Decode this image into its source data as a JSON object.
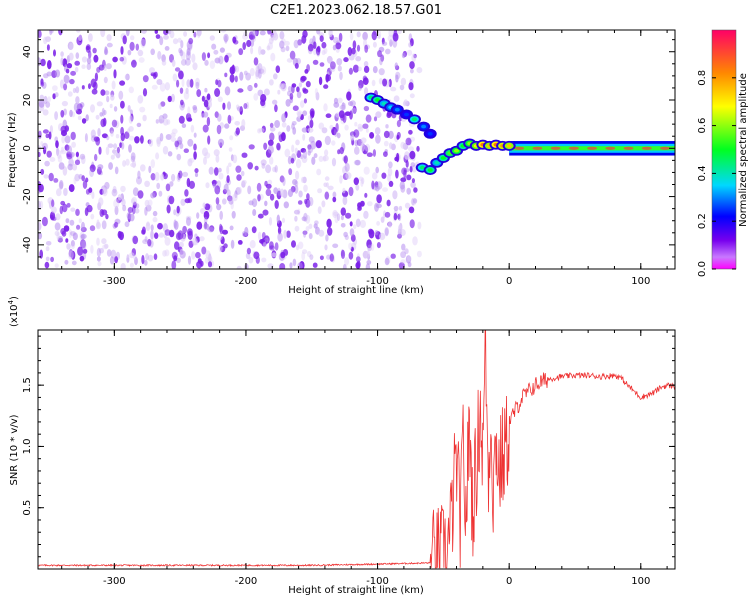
{
  "title": "C2E1.2023.062.18.57.G01",
  "chart_data": [
    {
      "type": "heatmap",
      "title": "",
      "xlabel": "Height of straight line (km)",
      "ylabel": "Frequency (Hz)",
      "xlim": [
        -358,
        126
      ],
      "ylim": [
        -50,
        49
      ],
      "x_ticks": [
        -300,
        -200,
        -100,
        0,
        100
      ],
      "y_ticks": [
        -40,
        -20,
        0,
        20,
        40
      ],
      "noise_region_x": [
        -358,
        -68
      ],
      "trace": [
        {
          "x": -105,
          "y": 21,
          "amp": 0.45
        },
        {
          "x": -100,
          "y": 20,
          "amp": 0.5
        },
        {
          "x": -95,
          "y": 18.5,
          "amp": 0.4
        },
        {
          "x": -90,
          "y": 17,
          "amp": 0.35
        },
        {
          "x": -85,
          "y": 16,
          "amp": 0.3
        },
        {
          "x": -78,
          "y": 14,
          "amp": 0.25
        },
        {
          "x": -72,
          "y": 12,
          "amp": 0.45
        },
        {
          "x": -65,
          "y": 9,
          "amp": 0.3
        },
        {
          "x": -60,
          "y": 6,
          "amp": 0.25
        },
        {
          "x": -66,
          "y": -8,
          "amp": 0.45
        },
        {
          "x": -60,
          "y": -9,
          "amp": 0.5
        },
        {
          "x": -55,
          "y": -6,
          "amp": 0.4
        },
        {
          "x": -50,
          "y": -4,
          "amp": 0.5
        },
        {
          "x": -45,
          "y": -2,
          "amp": 0.55
        },
        {
          "x": -40,
          "y": -1,
          "amp": 0.6
        },
        {
          "x": -35,
          "y": 1,
          "amp": 0.5
        },
        {
          "x": -30,
          "y": 2,
          "amp": 0.6
        },
        {
          "x": -25,
          "y": 1,
          "amp": 0.7
        },
        {
          "x": -20,
          "y": 1.5,
          "amp": 0.85
        },
        {
          "x": -15,
          "y": 1,
          "amp": 0.75
        },
        {
          "x": -10,
          "y": 1.5,
          "amp": 0.85
        },
        {
          "x": -5,
          "y": 1,
          "amp": 0.8
        },
        {
          "x": 0,
          "y": 1,
          "amp": 0.75
        }
      ],
      "band": {
        "x_start": 0,
        "x_end": 126,
        "y_center": 0,
        "halfwidth": 3
      },
      "colorbar": {
        "label": "Normalized spectral amplitude",
        "ticks": [
          0.0,
          0.2,
          0.4,
          0.6,
          0.8
        ],
        "range": [
          0,
          1
        ]
      }
    },
    {
      "type": "line",
      "title": "",
      "xlabel": "Height of straight line (km)",
      "ylabel": "SNR (10 * v/v)",
      "y_multiplier": "(x10",
      "y_multiplier_exp": "4",
      "y_multiplier_close": ")",
      "xlim": [
        -358,
        126
      ],
      "ylim": [
        0,
        1.95
      ],
      "x_ticks": [
        -300,
        -200,
        -100,
        0,
        100
      ],
      "y_ticks": [
        0.5,
        1.0,
        1.5
      ],
      "y_tick_labels": [
        "0.5",
        "1.0",
        "1.5"
      ],
      "color": "#ee3333",
      "series": [
        {
          "x": [
            -358,
            -300,
            -250,
            -200,
            -150,
            -100,
            -60,
            -50,
            -45,
            -40,
            -37,
            -35,
            -33,
            -30,
            -28,
            -25,
            -22,
            -20,
            -18,
            -16,
            -14,
            -12,
            -10,
            -8,
            -5,
            -2,
            0,
            5,
            10,
            15,
            20,
            25,
            30,
            40,
            50,
            60,
            70,
            80,
            85,
            90,
            95,
            100,
            105,
            110,
            115,
            120,
            126
          ],
          "y": [
            0.03,
            0.03,
            0.03,
            0.03,
            0.03,
            0.04,
            0.05,
            0.1,
            0.25,
            0.9,
            0.3,
            1.05,
            0.4,
            1.2,
            0.5,
            0.8,
            1.35,
            0.9,
            1.95,
            0.7,
            1.3,
            0.6,
            1.1,
            0.8,
            0.9,
            1.0,
            1.2,
            1.3,
            1.4,
            1.45,
            1.5,
            1.53,
            1.55,
            1.57,
            1.58,
            1.58,
            1.57,
            1.58,
            1.56,
            1.5,
            1.45,
            1.4,
            1.42,
            1.44,
            1.48,
            1.5,
            1.49
          ]
        }
      ]
    }
  ]
}
